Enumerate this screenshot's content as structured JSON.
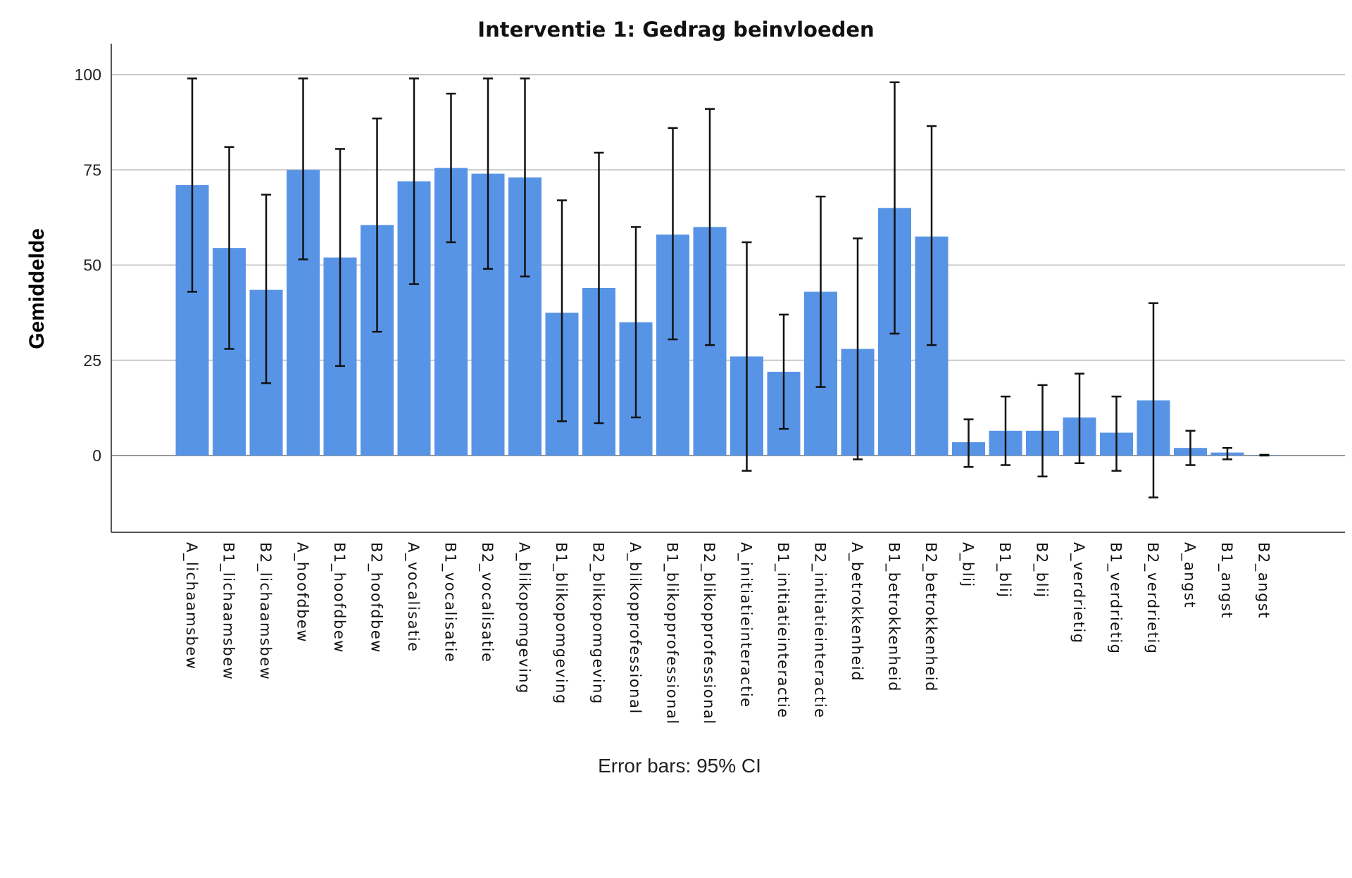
{
  "chart_data": {
    "type": "bar",
    "title": "Interventie 1: Gedrag beinvloeden",
    "xlabel": "",
    "ylabel": "Gemiddelde",
    "ylim": [
      -20,
      105
    ],
    "yticks": [
      0,
      25,
      50,
      75,
      100
    ],
    "grid": true,
    "legend": "none",
    "bar_color": "#5894E6",
    "footnote": "Error bars: 95% CI",
    "categories": [
      "A_lichaamsbew",
      "B1_lichaamsbew",
      "B2_lichaamsbew",
      "A_hoofdbew",
      "B1_hoofdbew",
      "B2_hoofdbew",
      "A_vocalisatie",
      "B1_vocalisatie",
      "B2_vocalisatie",
      "A_blikopomgeving",
      "B1_blikopomgeving",
      "B2_blikopomgeving",
      "A_blikopprofessional",
      "B1_blikopprofessional",
      "B2_blikopprofessional",
      "A_initiatieinteractie",
      "B1_initiatieinteractie",
      "B2_initiatieinteractie",
      "A_betrokkenheid",
      "B1_betrokkenheid",
      "B2_betrokkenheid",
      "A_blij",
      "B1_blij",
      "B2_blij",
      "A_verdrietig",
      "B1_verdrietig",
      "B2_verdrietig",
      "A_angst",
      "B1_angst",
      "B2_angst"
    ],
    "values": [
      71,
      54.5,
      43.5,
      75,
      52,
      60.5,
      72,
      75.5,
      74,
      73,
      37.5,
      44,
      35,
      58,
      60,
      26,
      22,
      43,
      28,
      65,
      57.5,
      3.5,
      6.5,
      6.5,
      10,
      6,
      14.5,
      2,
      0.8,
      0.1
    ],
    "ci_lower": [
      43,
      28,
      19,
      51.5,
      23.5,
      32.5,
      45,
      56,
      49,
      47,
      9,
      8.5,
      10,
      30.5,
      29,
      -4,
      7,
      18,
      -1,
      32,
      29,
      -3,
      -2.5,
      -5.5,
      -2,
      -4,
      -11,
      -2.5,
      -1,
      0
    ],
    "ci_upper": [
      99,
      81,
      68.5,
      99,
      80.5,
      88.5,
      99,
      95,
      99,
      99,
      67,
      79.5,
      60,
      86,
      91,
      56,
      37,
      68,
      57,
      98,
      86.5,
      9.5,
      15.5,
      18.5,
      21.5,
      15.5,
      40,
      6.5,
      2,
      0.2
    ]
  }
}
